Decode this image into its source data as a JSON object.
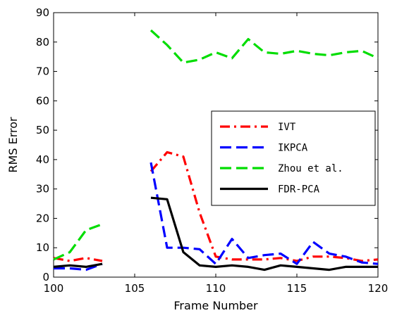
{
  "chart_data": {
    "type": "line",
    "title": "",
    "xlabel": "Frame Number",
    "ylabel": "RMS Error",
    "xlim": [
      100,
      120
    ],
    "ylim": [
      0,
      90
    ],
    "xticks": [
      100,
      105,
      110,
      115,
      120
    ],
    "yticks": [
      0,
      10,
      20,
      30,
      40,
      50,
      60,
      70,
      80,
      90
    ],
    "grid": false,
    "legend_position": "right",
    "series": [
      {
        "name": "IVT",
        "color": "#ff0000",
        "style": "dashdot",
        "segments": [
          {
            "x": [
              100,
              101,
              102,
              103
            ],
            "y": [
              6.5,
              5.5,
              6.5,
              5.5
            ]
          },
          {
            "x": [
              106,
              107,
              108,
              109,
              110,
              111,
              112,
              113,
              114,
              115,
              116,
              117,
              118,
              119,
              120
            ],
            "y": [
              36,
              42.5,
              41,
              22,
              7,
              6,
              6,
              6,
              6.5,
              5.5,
              7,
              7,
              6.5,
              5.5,
              6
            ]
          }
        ]
      },
      {
        "name": "IKPCA",
        "color": "#0000ff",
        "style": "dashed",
        "segments": [
          {
            "x": [
              100,
              101,
              102,
              103
            ],
            "y": [
              3,
              3,
              2.5,
              4.5
            ]
          },
          {
            "x": [
              106,
              107,
              108,
              109,
              110,
              111,
              112,
              113,
              114,
              115,
              116,
              117,
              118,
              119,
              120
            ],
            "y": [
              39,
              10,
              10,
              9.5,
              4.5,
              13,
              6.5,
              7.5,
              8,
              4.5,
              12,
              8,
              7,
              5,
              4.5
            ]
          }
        ]
      },
      {
        "name": "Zhou et al.",
        "color": "#00dd00",
        "style": "dashed",
        "segments": [
          {
            "x": [
              100,
              101,
              102,
              103
            ],
            "y": [
              6,
              8.5,
              16,
              18
            ]
          },
          {
            "x": [
              106,
              107,
              108,
              109,
              110,
              111,
              112,
              113,
              114,
              115,
              116,
              117,
              118,
              119,
              120
            ],
            "y": [
              84,
              79,
              73,
              74,
              76.5,
              74.5,
              81,
              76.5,
              76,
              77,
              76,
              75.5,
              76.5,
              77,
              74.5
            ]
          }
        ]
      },
      {
        "name": "FDR-PCA",
        "color": "#000000",
        "style": "solid",
        "segments": [
          {
            "x": [
              100,
              101,
              102,
              103
            ],
            "y": [
              3.5,
              4,
              3.5,
              4.5
            ]
          },
          {
            "x": [
              106,
              107,
              108,
              109,
              110,
              111,
              112,
              113,
              114,
              115,
              116,
              117,
              118,
              119,
              120
            ],
            "y": [
              27,
              26.5,
              8.5,
              4,
              3.5,
              4,
              3.5,
              2.5,
              4,
              3.5,
              3,
              2.5,
              3.5,
              3.5,
              3.5
            ]
          }
        ]
      }
    ]
  }
}
